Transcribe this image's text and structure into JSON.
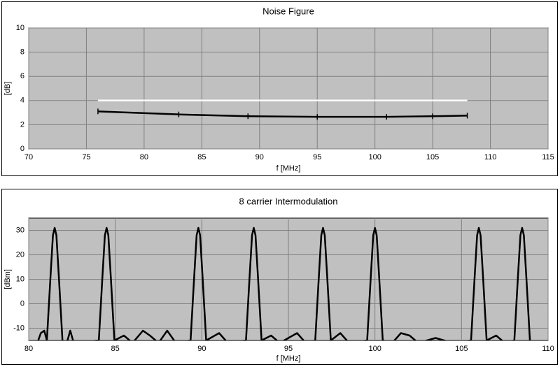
{
  "chart_data": [
    {
      "type": "line",
      "title": "Noise Figure",
      "xlabel": "f [MHz]",
      "ylabel": "[dB]",
      "xlim": [
        70,
        115
      ],
      "xticks": [
        70,
        75,
        80,
        85,
        90,
        95,
        100,
        105,
        110,
        115
      ],
      "ylim": [
        0,
        10
      ],
      "yticks": [
        0,
        2,
        4,
        6,
        8,
        10
      ],
      "grid": true,
      "background": "#c0c0c0",
      "series": [
        {
          "color": "#ffffff",
          "x": [
            76,
            108
          ],
          "values": [
            4,
            4
          ],
          "markers": false
        },
        {
          "color": "#000000",
          "x": [
            76,
            83,
            89,
            95,
            101,
            105,
            108
          ],
          "values": [
            3.1,
            2.85,
            2.7,
            2.65,
            2.65,
            2.7,
            2.75
          ],
          "markers": true
        }
      ]
    },
    {
      "type": "line",
      "title": "8 carrier Intermodulation",
      "xlabel": "f [MHz]",
      "ylabel": "[dBm]",
      "xlim": [
        80,
        110
      ],
      "xticks": [
        80,
        85,
        90,
        95,
        100,
        105,
        110
      ],
      "ylim": [
        -15,
        35
      ],
      "yticks": [
        -10,
        0,
        10,
        20,
        30
      ],
      "grid": true,
      "background": "#c0c0c0",
      "series": [
        {
          "color": "#000000",
          "markers": false,
          "x": [
            80.5,
            80.7,
            80.9,
            81.05,
            81.25,
            81.4,
            81.5,
            81.6,
            81.75,
            81.95,
            82.2,
            82.4,
            82.6,
            84.05,
            84.25,
            84.4,
            84.5,
            84.6,
            84.75,
            84.95,
            85.5,
            86,
            86.6,
            87,
            87.5,
            88,
            88.5,
            89.35,
            89.55,
            89.7,
            89.8,
            89.9,
            90.05,
            90.25,
            91,
            91.5,
            92.55,
            92.75,
            92.9,
            93,
            93.1,
            93.25,
            93.45,
            94,
            94.5,
            95.5,
            96,
            96.55,
            96.75,
            96.9,
            97,
            97.1,
            97.25,
            97.45,
            98,
            98.5,
            99.55,
            99.75,
            99.9,
            100,
            100.1,
            100.25,
            100.45,
            101,
            101.5,
            102,
            102.5,
            103.5,
            104.5,
            105.55,
            105.75,
            105.9,
            106,
            106.1,
            106.25,
            106.45,
            107,
            107.5,
            108.05,
            108.25,
            108.4,
            108.5,
            108.6,
            108.75,
            108.95,
            109.3
          ],
          "values": [
            -16,
            -12,
            -11,
            -15,
            10,
            28,
            31,
            28,
            10,
            -15,
            -16,
            -11,
            -16,
            -15,
            10,
            28,
            31,
            28,
            10,
            -15,
            -13,
            -16,
            -11,
            -13,
            -16,
            -11,
            -16,
            -15,
            10,
            28,
            31,
            28,
            10,
            -15,
            -12,
            -16,
            -15,
            10,
            28,
            31,
            28,
            10,
            -15,
            -13,
            -16,
            -12,
            -16,
            -15,
            10,
            28,
            31,
            28,
            10,
            -15,
            -12,
            -16,
            -15,
            10,
            28,
            31,
            28,
            10,
            -15,
            -16,
            -12,
            -13,
            -16,
            -14,
            -16,
            -15,
            10,
            28,
            31,
            28,
            10,
            -15,
            -13,
            -16,
            -15,
            10,
            28,
            31,
            28,
            10,
            -15,
            -16
          ]
        }
      ]
    }
  ]
}
